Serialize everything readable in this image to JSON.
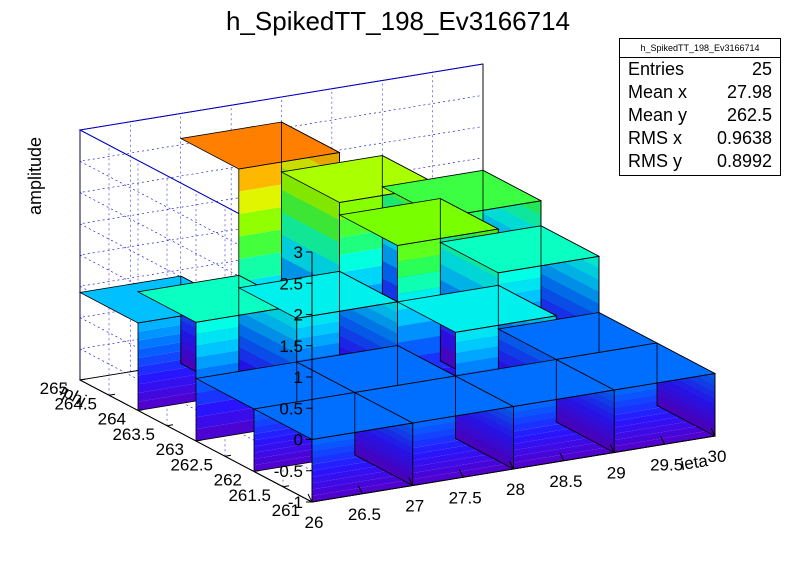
{
  "title": "h_SpikedTT_198_Ev3166714",
  "stats": {
    "name": "h_SpikedTT_198_Ev3166714",
    "rows": [
      {
        "label": "Entries",
        "value": "25"
      },
      {
        "label": "Mean x",
        "value": "27.98"
      },
      {
        "label": "Mean y",
        "value": "262.5"
      },
      {
        "label": "RMS x",
        "value": "0.9638"
      },
      {
        "label": "RMS y",
        "value": "0.8992"
      }
    ]
  },
  "chart_data": {
    "type": "lego",
    "title": "h_SpikedTT_198_Ev3166714",
    "xlabel": "ieta",
    "ylabel": "iphi",
    "zlabel": "amplitude",
    "xlim": [
      26,
      30
    ],
    "ylim": [
      261,
      265
    ],
    "zlim": [
      -1,
      3
    ],
    "x_ticks": [
      "26",
      "26.5",
      "27",
      "27.5",
      "28",
      "28.5",
      "29",
      "29.5",
      "30"
    ],
    "y_ticks": [
      "261",
      "261.5",
      "262",
      "262.5",
      "263",
      "263.5",
      "264",
      "264.5",
      "265"
    ],
    "z_ticks": [
      "-1",
      "-0.5",
      "0",
      "0.5",
      "1",
      "1.5",
      "2",
      "2.5",
      "3"
    ],
    "x_bins": [
      26.5,
      27.5,
      28.5,
      29.5
    ],
    "y_bins": [
      261.5,
      262.5,
      263.5,
      264.5
    ],
    "values": [
      [
        0,
        0,
        0,
        0
      ],
      [
        0,
        0,
        0.7,
        0
      ],
      [
        0.9,
        0.7,
        1.6,
        0.9
      ],
      [
        0.4,
        2.6,
        1.8,
        1.3
      ]
    ],
    "colorscale": "rainbow",
    "grid": true
  }
}
